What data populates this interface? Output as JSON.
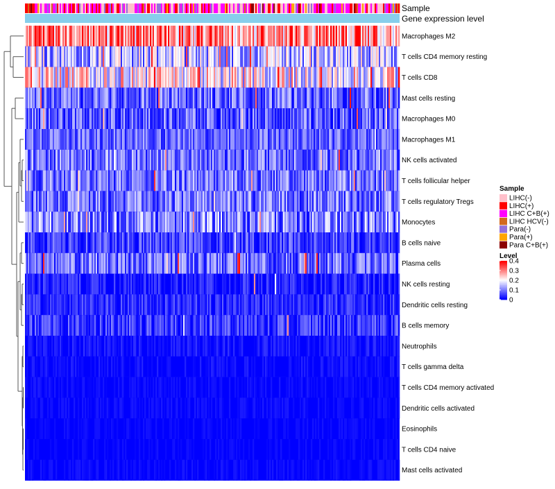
{
  "chart_data": {
    "type": "heatmap",
    "title": "",
    "annotation_tracks": [
      "Sample",
      "Gene expression level"
    ],
    "rows": [
      {
        "label": "Macrophages M2",
        "mean": 0.3,
        "spread": 0.09,
        "high_rate": 0.18
      },
      {
        "label": "T cells CD4 memory resting",
        "mean": 0.14,
        "spread": 0.07,
        "high_rate": 0.06
      },
      {
        "label": "T cells CD8",
        "mean": 0.2,
        "spread": 0.08,
        "high_rate": 0.1
      },
      {
        "label": "Mast cells resting",
        "mean": 0.08,
        "spread": 0.05,
        "high_rate": 0.02
      },
      {
        "label": "Macrophages M0",
        "mean": 0.07,
        "spread": 0.05,
        "high_rate": 0.02
      },
      {
        "label": "Macrophages M1",
        "mean": 0.08,
        "spread": 0.04,
        "high_rate": 0.01
      },
      {
        "label": "NK cells activated",
        "mean": 0.09,
        "spread": 0.05,
        "high_rate": 0.02
      },
      {
        "label": "T cells follicular helper",
        "mean": 0.09,
        "spread": 0.05,
        "high_rate": 0.02
      },
      {
        "label": "T cells regulatory  Tregs",
        "mean": 0.09,
        "spread": 0.05,
        "high_rate": 0.02
      },
      {
        "label": "Monocytes",
        "mean": 0.1,
        "spread": 0.06,
        "high_rate": 0.03
      },
      {
        "label": "B cells naive",
        "mean": 0.05,
        "spread": 0.04,
        "high_rate": 0.01
      },
      {
        "label": "Plasma cells",
        "mean": 0.08,
        "spread": 0.05,
        "high_rate": 0.02
      },
      {
        "label": "NK cells resting",
        "mean": 0.02,
        "spread": 0.03,
        "high_rate": 0.005
      },
      {
        "label": "Dendritic cells resting",
        "mean": 0.03,
        "spread": 0.03,
        "high_rate": 0.005
      },
      {
        "label": "B cells memory",
        "mean": 0.04,
        "spread": 0.04,
        "high_rate": 0.01
      },
      {
        "label": "Neutrophils",
        "mean": 0.01,
        "spread": 0.02,
        "high_rate": 0.0
      },
      {
        "label": "T cells gamma delta",
        "mean": 0.005,
        "spread": 0.015,
        "high_rate": 0.0
      },
      {
        "label": "T cells CD4 memory activated",
        "mean": 0.005,
        "spread": 0.01,
        "high_rate": 0.0
      },
      {
        "label": "Dendritic cells activated",
        "mean": 0.005,
        "spread": 0.01,
        "high_rate": 0.0
      },
      {
        "label": "Eosinophils",
        "mean": 0.003,
        "spread": 0.008,
        "high_rate": 0.0
      },
      {
        "label": "T cells CD4 naive",
        "mean": 0.003,
        "spread": 0.008,
        "high_rate": 0.0
      },
      {
        "label": "Mast cells activated",
        "mean": 0.004,
        "spread": 0.01,
        "high_rate": 0.0
      }
    ],
    "legend": {
      "sample": {
        "title": "Sample",
        "entries": [
          {
            "label": "LIHC(-)",
            "color": "#ffc0cb"
          },
          {
            "label": "LIHC(+)",
            "color": "#ff0000"
          },
          {
            "label": "LIHC C+B(+)",
            "color": "#ff00ff"
          },
          {
            "label": "LIHC HCV(-)",
            "color": "#d2691e"
          },
          {
            "label": "Para(-)",
            "color": "#9370db"
          },
          {
            "label": "Para(+)",
            "color": "#ffa500"
          },
          {
            "label": "Para C+B(+)",
            "color": "#8b0000"
          }
        ]
      },
      "level": {
        "title": "Level",
        "ticks": [
          "0.4",
          "0.3",
          "0.2",
          "0.1",
          "0"
        ],
        "colors": [
          "#ff0000",
          "#ffffff",
          "#0000ff"
        ]
      }
    },
    "expression_track_color": "#87ceeb",
    "n_samples": 270
  }
}
